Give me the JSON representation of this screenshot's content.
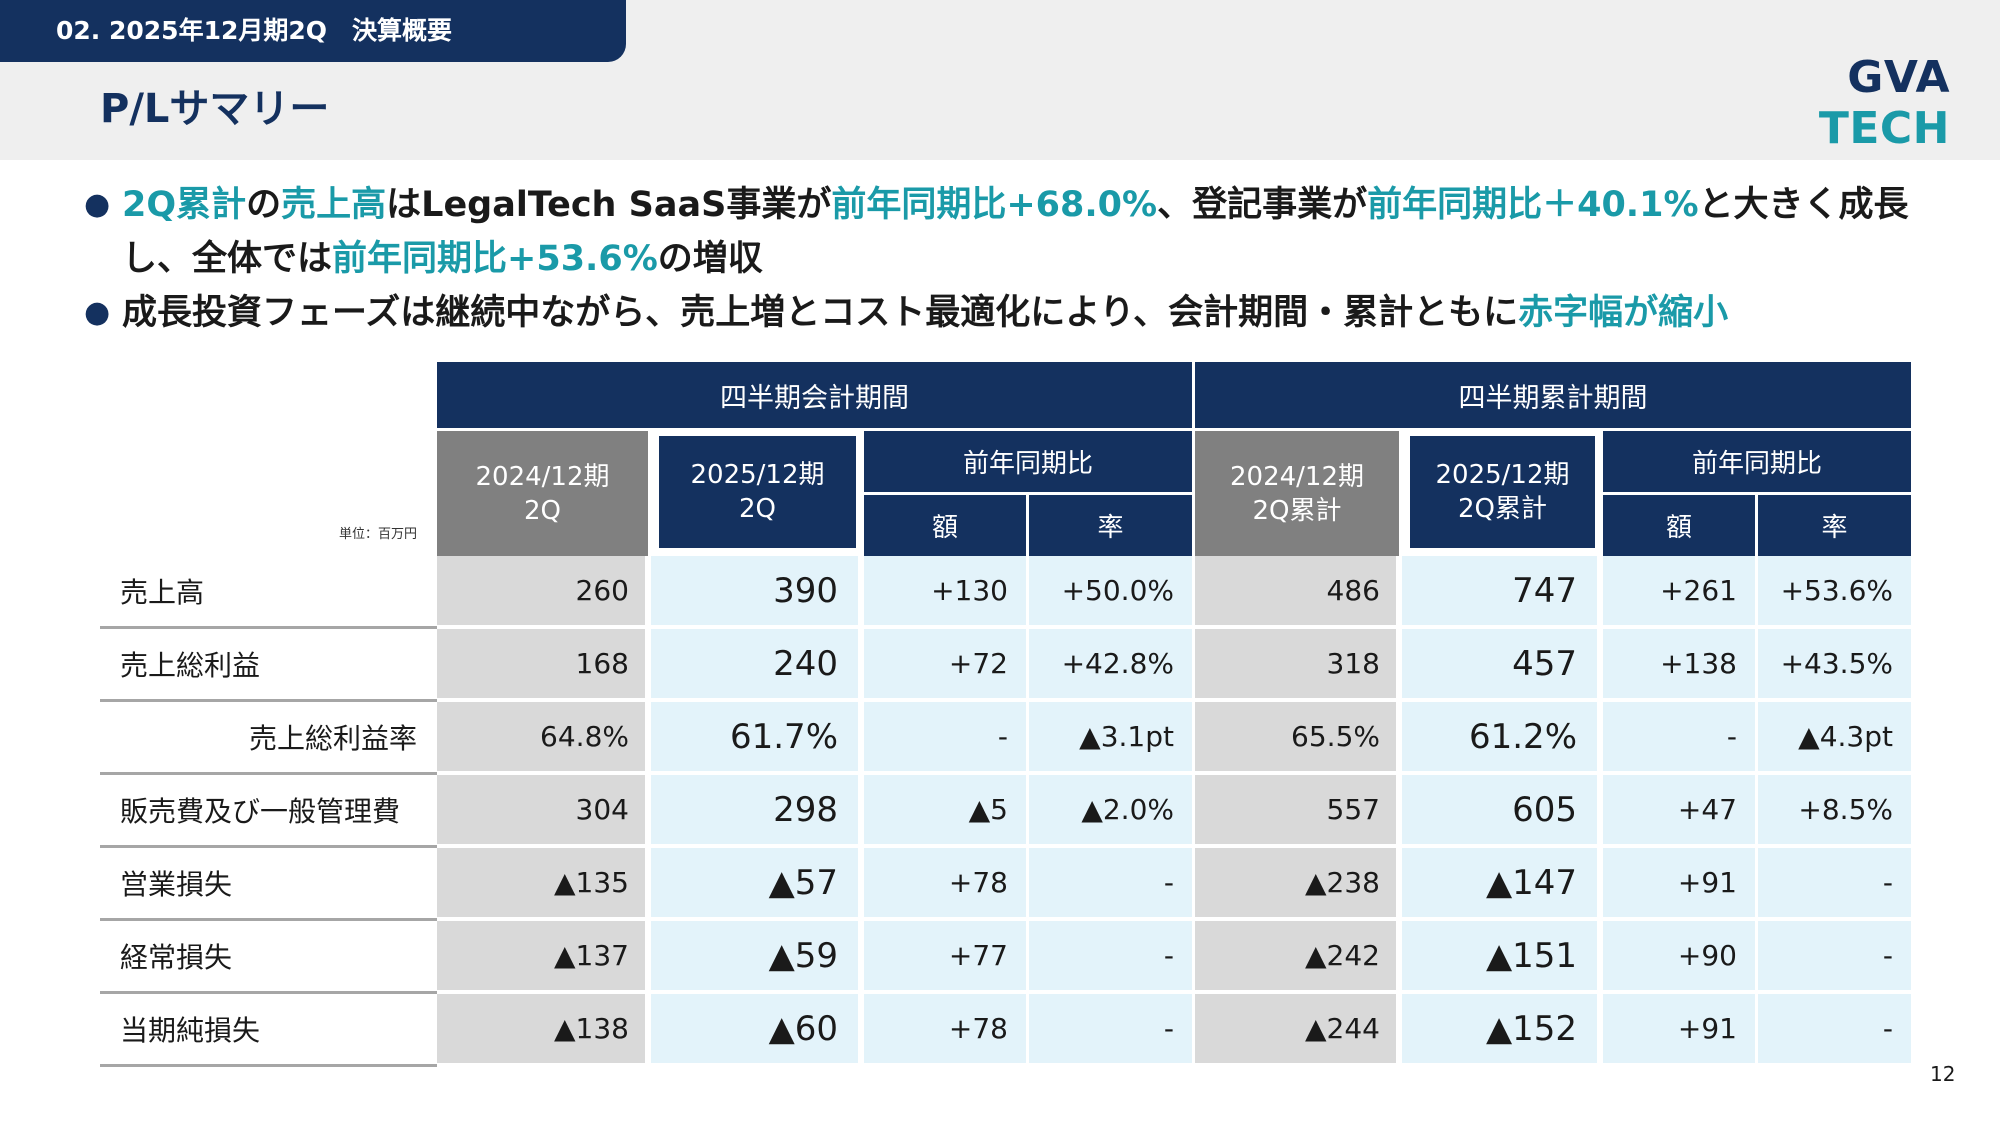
{
  "header": {
    "section": "02. 2025年12月期2Q　決算概要",
    "title": "P/Lサマリー",
    "logo_main": "GVA",
    "logo_accent": "TECH"
  },
  "bullets": [
    {
      "segments": [
        {
          "text": "2Q累計",
          "hl": true
        },
        {
          "text": "の",
          "hl": false
        },
        {
          "text": "売上高",
          "hl": true
        },
        {
          "text": "はLegalTech SaaS事業が",
          "hl": false
        },
        {
          "text": "前年同期比+68.0%",
          "hl": true
        },
        {
          "text": "、登記事業が",
          "hl": false
        },
        {
          "text": "前年同期比＋40.1%",
          "hl": true
        },
        {
          "text": "と大きく成長し、全体では",
          "hl": false
        },
        {
          "text": "前年同期比+53.6%",
          "hl": true
        },
        {
          "text": "の増収",
          "hl": false
        }
      ]
    },
    {
      "segments": [
        {
          "text": "成長投資フェーズは継続中ながら、売上増とコスト最適化により、会計期間・累計ともに",
          "hl": false
        },
        {
          "text": "赤字幅が縮小",
          "hl": true
        }
      ]
    }
  ],
  "table": {
    "unit_label": "単位：百万円",
    "group_quarter": "四半期会計期間",
    "group_cumulative": "四半期累計期間",
    "q_prev": [
      "2024/12期",
      "2Q"
    ],
    "q_cur": [
      "2025/12期",
      "2Q"
    ],
    "cum_prev": [
      "2024/12期",
      "2Q累計"
    ],
    "cum_cur": [
      "2025/12期",
      "2Q累計"
    ],
    "yoy": "前年同期比",
    "amount": "額",
    "rate": "率",
    "rows": [
      {
        "label": "売上高",
        "indent": false,
        "cells": [
          "260",
          "390",
          "+130",
          "+50.0%",
          "486",
          "747",
          "+261",
          "+53.6%"
        ]
      },
      {
        "label": "売上総利益",
        "indent": false,
        "cells": [
          "168",
          "240",
          "+72",
          "+42.8%",
          "318",
          "457",
          "+138",
          "+43.5%"
        ]
      },
      {
        "label": "売上総利益率",
        "indent": true,
        "cells": [
          "64.8%",
          "61.7%",
          "-",
          "▲3.1pt",
          "65.5%",
          "61.2%",
          "-",
          "▲4.3pt"
        ]
      },
      {
        "label": "販売費及び一般管理費",
        "indent": false,
        "cells": [
          "304",
          "298",
          "▲5",
          "▲2.0%",
          "557",
          "605",
          "+47",
          "+8.5%"
        ]
      },
      {
        "label": "営業損失",
        "indent": false,
        "cells": [
          "▲135",
          "▲57",
          "+78",
          "-",
          "▲238",
          "▲147",
          "+91",
          "-"
        ]
      },
      {
        "label": "経常損失",
        "indent": false,
        "cells": [
          "▲137",
          "▲59",
          "+77",
          "-",
          "▲242",
          "▲151",
          "+90",
          "-"
        ]
      },
      {
        "label": "当期純損失",
        "indent": false,
        "cells": [
          "▲138",
          "▲60",
          "+78",
          "-",
          "▲244",
          "▲152",
          "+91",
          "-"
        ]
      }
    ]
  },
  "page_number": "12"
}
